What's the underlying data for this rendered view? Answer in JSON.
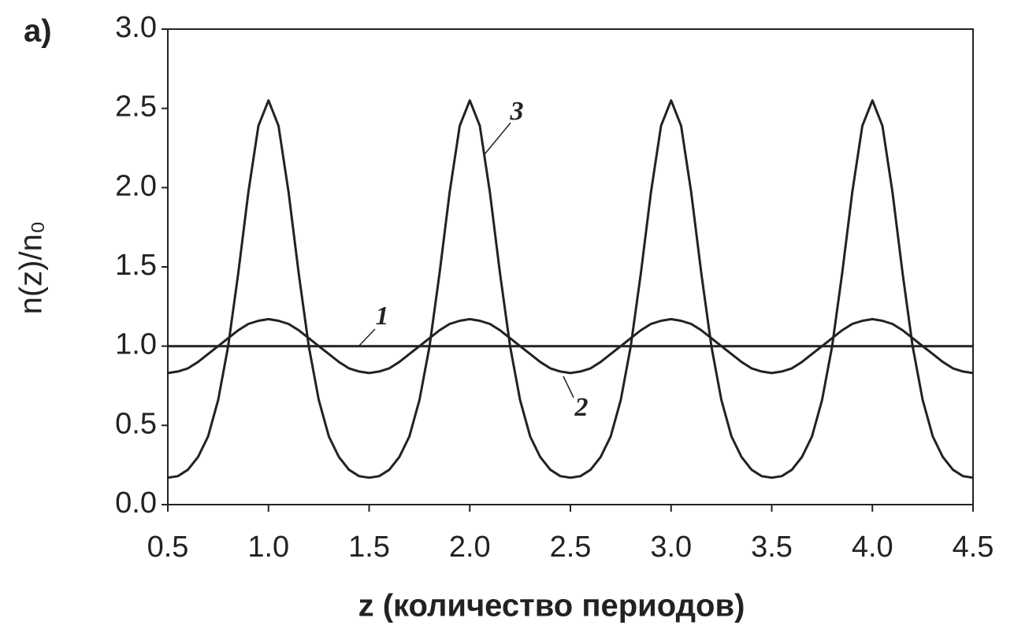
{
  "chart_data": {
    "type": "line",
    "panel_label": "a)",
    "xlabel": "z (количество периодов)",
    "ylabel": "n(z)/n₀",
    "xlim": [
      0.5,
      4.5
    ],
    "ylim": [
      0,
      3
    ],
    "xticks": [
      0.5,
      {
        "value": 1,
        "label": "1.0"
      },
      1.5,
      {
        "value": 2,
        "label": "2.0"
      },
      2.5,
      {
        "value": 3,
        "label": "3.0"
      },
      3.5,
      {
        "value": 4,
        "label": "4.0"
      },
      4.5
    ],
    "yticks": [
      {
        "value": 0,
        "label": "0.0"
      },
      0.5,
      {
        "value": 1,
        "label": "1.0"
      },
      1.5,
      {
        "value": 2,
        "label": "2.0"
      },
      2.5,
      {
        "value": 3,
        "label": "3.0"
      }
    ],
    "x": [
      0.5,
      0.55,
      0.6,
      0.65,
      0.7,
      0.75,
      0.8,
      0.85,
      0.9,
      0.95,
      1,
      1.05,
      1.1,
      1.15,
      1.2,
      1.25,
      1.3,
      1.35,
      1.4,
      1.45,
      1.5,
      1.55,
      1.6,
      1.65,
      1.7,
      1.75,
      1.8,
      1.85,
      1.9,
      1.95,
      2,
      2.05,
      2.1,
      2.15,
      2.2,
      2.25,
      2.3,
      2.35,
      2.4,
      2.45,
      2.5,
      2.55,
      2.6,
      2.65,
      2.7,
      2.75,
      2.8,
      2.85,
      2.9,
      2.95,
      3,
      3.05,
      3.1,
      3.15,
      3.2,
      3.25,
      3.3,
      3.35,
      3.4,
      3.45,
      3.5,
      3.55,
      3.6,
      3.65,
      3.7,
      3.75,
      3.8,
      3.85,
      3.9,
      3.95,
      4,
      4.05,
      4.1,
      4.15,
      4.2,
      4.25,
      4.3,
      4.35,
      4.4,
      4.45,
      4.5
    ],
    "series": [
      {
        "name": "1",
        "color": "#222222",
        "values": [
          1,
          1,
          1,
          1,
          1,
          1,
          1,
          1,
          1,
          1,
          1,
          1,
          1,
          1,
          1,
          1,
          1,
          1,
          1,
          1,
          1,
          1,
          1,
          1,
          1,
          1,
          1,
          1,
          1,
          1,
          1,
          1,
          1,
          1,
          1,
          1,
          1,
          1,
          1,
          1,
          1,
          1,
          1,
          1,
          1,
          1,
          1,
          1,
          1,
          1,
          1,
          1,
          1,
          1,
          1,
          1,
          1,
          1,
          1,
          1,
          1,
          1,
          1,
          1,
          1,
          1,
          1,
          1,
          1,
          1,
          1,
          1,
          1,
          1,
          1,
          1,
          1,
          1,
          1,
          1,
          1
        ]
      },
      {
        "name": "2",
        "color": "#222222",
        "values": [
          0.83,
          0.84,
          0.86,
          0.9,
          0.95,
          1,
          1.05,
          1.1,
          1.14,
          1.16,
          1.17,
          1.16,
          1.14,
          1.1,
          1.05,
          1,
          0.95,
          0.9,
          0.86,
          0.84,
          0.83,
          0.84,
          0.86,
          0.9,
          0.95,
          1,
          1.05,
          1.1,
          1.14,
          1.16,
          1.17,
          1.16,
          1.14,
          1.1,
          1.05,
          1,
          0.95,
          0.9,
          0.86,
          0.84,
          0.83,
          0.84,
          0.86,
          0.9,
          0.95,
          1,
          1.05,
          1.1,
          1.14,
          1.16,
          1.17,
          1.16,
          1.14,
          1.1,
          1.05,
          1,
          0.95,
          0.9,
          0.86,
          0.84,
          0.83,
          0.84,
          0.86,
          0.9,
          0.95,
          1,
          1.05,
          1.1,
          1.14,
          1.16,
          1.17,
          1.16,
          1.14,
          1.1,
          1.05,
          1,
          0.95,
          0.9,
          0.86,
          0.84,
          0.83
        ]
      },
      {
        "name": "3",
        "color": "#222222",
        "values": [
          0.17,
          0.18,
          0.22,
          0.3,
          0.43,
          0.66,
          1,
          1.46,
          1.97,
          2.39,
          2.55,
          2.39,
          1.97,
          1.46,
          1,
          0.66,
          0.43,
          0.3,
          0.22,
          0.18,
          0.17,
          0.18,
          0.22,
          0.3,
          0.43,
          0.66,
          1,
          1.46,
          1.97,
          2.39,
          2.55,
          2.39,
          1.97,
          1.46,
          1,
          0.66,
          0.43,
          0.3,
          0.22,
          0.18,
          0.17,
          0.18,
          0.22,
          0.3,
          0.43,
          0.66,
          1,
          1.46,
          1.97,
          2.39,
          2.55,
          2.39,
          1.97,
          1.46,
          1,
          0.66,
          0.43,
          0.3,
          0.22,
          0.18,
          0.17,
          0.18,
          0.22,
          0.3,
          0.43,
          0.66,
          1,
          1.46,
          1.97,
          2.39,
          2.55,
          2.39,
          1.97,
          1.46,
          1,
          0.66,
          0.43,
          0.3,
          0.22,
          0.18,
          0.17
        ]
      }
    ]
  }
}
